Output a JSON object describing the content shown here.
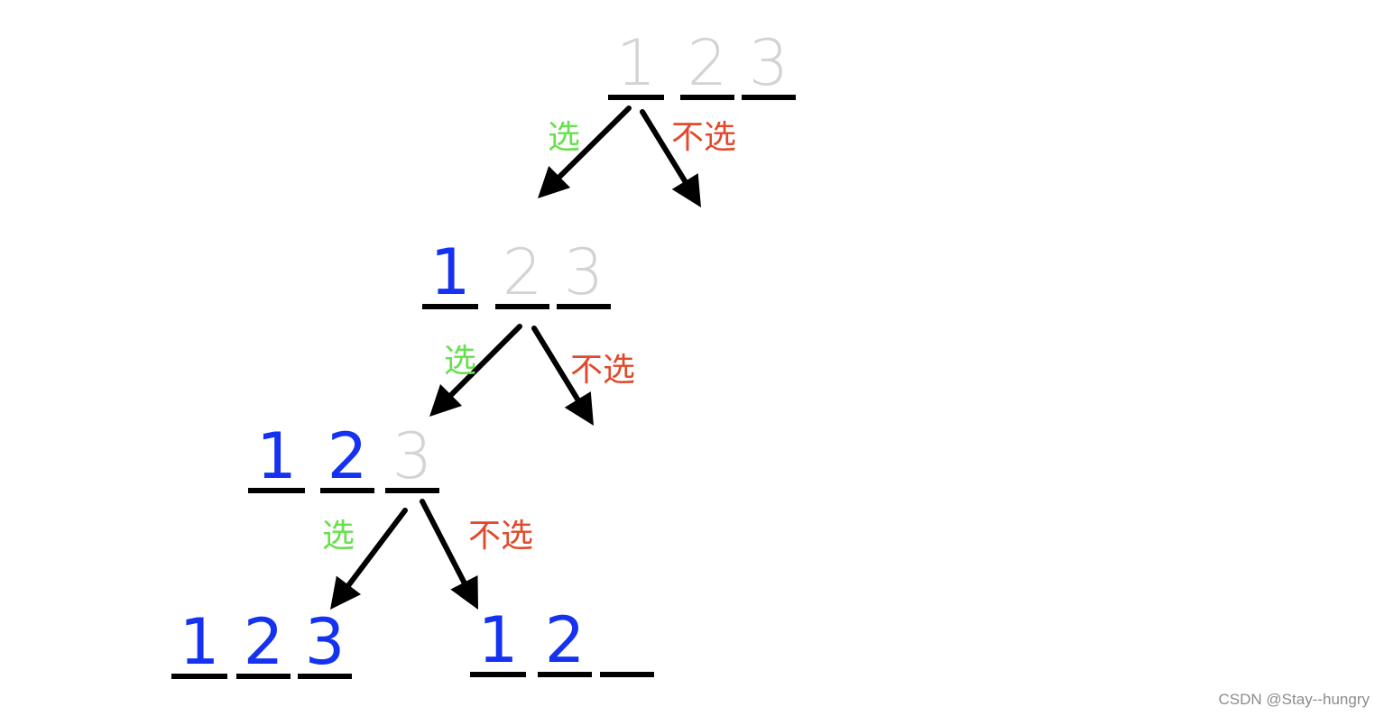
{
  "colors": {
    "selected": "#1432f0",
    "unselected": "#d3d3d3",
    "choose_label": "#66e04c",
    "skip_label": "#e04a2c",
    "line": "#000000"
  },
  "labels": {
    "choose": "选",
    "skip": "不选"
  },
  "nodes": [
    {
      "id": "root",
      "slots": [
        {
          "digit": "1",
          "state": "unselected"
        },
        {
          "digit": "2",
          "state": "unselected"
        },
        {
          "digit": "3",
          "state": "unselected"
        }
      ]
    },
    {
      "id": "pick-1",
      "slots": [
        {
          "digit": "1",
          "state": "selected"
        },
        {
          "digit": "2",
          "state": "unselected"
        },
        {
          "digit": "3",
          "state": "unselected"
        }
      ]
    },
    {
      "id": "pick-1-2",
      "slots": [
        {
          "digit": "1",
          "state": "selected"
        },
        {
          "digit": "2",
          "state": "selected"
        },
        {
          "digit": "3",
          "state": "unselected"
        }
      ]
    },
    {
      "id": "pick-1-2-3",
      "slots": [
        {
          "digit": "1",
          "state": "selected"
        },
        {
          "digit": "2",
          "state": "selected"
        },
        {
          "digit": "3",
          "state": "selected"
        }
      ]
    },
    {
      "id": "pick-1-2-skip3",
      "slots": [
        {
          "digit": "1",
          "state": "selected"
        },
        {
          "digit": "2",
          "state": "selected"
        },
        {
          "digit": "",
          "state": "empty"
        }
      ]
    }
  ],
  "edges": [
    {
      "from": "root",
      "to": "pick-1",
      "type": "choose"
    },
    {
      "from": "root",
      "to": "",
      "type": "skip"
    },
    {
      "from": "pick-1",
      "to": "pick-1-2",
      "type": "choose"
    },
    {
      "from": "pick-1",
      "to": "",
      "type": "skip"
    },
    {
      "from": "pick-1-2",
      "to": "pick-1-2-3",
      "type": "choose"
    },
    {
      "from": "pick-1-2",
      "to": "pick-1-2-skip3",
      "type": "skip"
    }
  ],
  "watermark": "CSDN @Stay--hungry"
}
